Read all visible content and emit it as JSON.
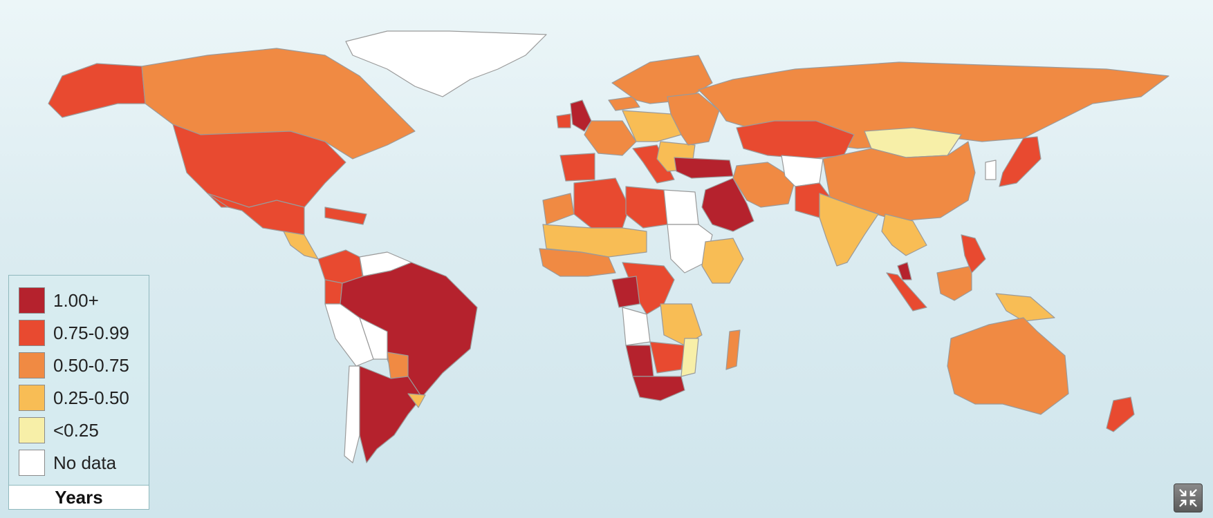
{
  "map": {
    "legend": {
      "title": "Years",
      "items": [
        {
          "label": "1.00+",
          "color": "#b5222d"
        },
        {
          "label": "0.75-0.99",
          "color": "#e84a30"
        },
        {
          "label": "0.50-0.75",
          "color": "#f08a43"
        },
        {
          "label": "0.25-0.50",
          "color": "#f8bd55"
        },
        {
          "label": "<0.25",
          "color": "#f7efa8"
        },
        {
          "label": "No data",
          "color": "#ffffff"
        }
      ]
    },
    "countries": [
      {
        "name": "Alaska",
        "category": "0.75-0.99"
      },
      {
        "name": "Canada",
        "category": "0.50-0.75"
      },
      {
        "name": "Greenland",
        "category": "No data"
      },
      {
        "name": "United States",
        "category": "0.75-0.99"
      },
      {
        "name": "Mexico",
        "category": "0.75-0.99"
      },
      {
        "name": "Central America",
        "category": "0.25-0.50"
      },
      {
        "name": "Caribbean",
        "category": "0.75-0.99"
      },
      {
        "name": "Colombia",
        "category": "0.75-0.99"
      },
      {
        "name": "Venezuela",
        "category": "No data"
      },
      {
        "name": "Ecuador",
        "category": "0.75-0.99"
      },
      {
        "name": "Peru",
        "category": "No data"
      },
      {
        "name": "Brazil",
        "category": "1.00+"
      },
      {
        "name": "Bolivia",
        "category": "No data"
      },
      {
        "name": "Paraguay",
        "category": "0.50-0.75"
      },
      {
        "name": "Chile",
        "category": "No data"
      },
      {
        "name": "Argentina",
        "category": "1.00+"
      },
      {
        "name": "Uruguay",
        "category": "0.25-0.50"
      },
      {
        "name": "Iceland",
        "category": "0.50-0.75"
      },
      {
        "name": "United Kingdom",
        "category": "1.00+"
      },
      {
        "name": "Ireland",
        "category": "0.75-0.99"
      },
      {
        "name": "Scandinavia",
        "category": "0.50-0.75"
      },
      {
        "name": "Iberia",
        "category": "0.75-0.99"
      },
      {
        "name": "Western Europe",
        "category": "0.50-0.75"
      },
      {
        "name": "Central Europe",
        "category": "0.25-0.50"
      },
      {
        "name": "Italy",
        "category": "0.75-0.99"
      },
      {
        "name": "Balkans",
        "category": "0.25-0.50"
      },
      {
        "name": "Eastern Europe",
        "category": "0.50-0.75"
      },
      {
        "name": "Russia",
        "category": "0.50-0.75"
      },
      {
        "name": "Kazakhstan",
        "category": "0.75-0.99"
      },
      {
        "name": "Mongolia",
        "category": "<0.25"
      },
      {
        "name": "China",
        "category": "0.50-0.75"
      },
      {
        "name": "Turkey",
        "category": "1.00+"
      },
      {
        "name": "Saudi Arabia",
        "category": "1.00+"
      },
      {
        "name": "Iran",
        "category": "0.50-0.75"
      },
      {
        "name": "Afghanistan",
        "category": "No data"
      },
      {
        "name": "Pakistan",
        "category": "0.75-0.99"
      },
      {
        "name": "India",
        "category": "0.25-0.50"
      },
      {
        "name": "Southeast Asia",
        "category": "0.25-0.50"
      },
      {
        "name": "Japan",
        "category": "0.75-0.99"
      },
      {
        "name": "Korea",
        "category": "No data"
      },
      {
        "name": "Malaysia",
        "category": "1.00+"
      },
      {
        "name": "Sumatra",
        "category": "0.75-0.99"
      },
      {
        "name": "Borneo",
        "category": "0.50-0.75"
      },
      {
        "name": "Philippines",
        "category": "0.75-0.99"
      },
      {
        "name": "New Guinea",
        "category": "0.25-0.50"
      },
      {
        "name": "Australia",
        "category": "0.50-0.75"
      },
      {
        "name": "New Zealand",
        "category": "0.75-0.99"
      },
      {
        "name": "Morocco",
        "category": "0.50-0.75"
      },
      {
        "name": "Algeria",
        "category": "0.75-0.99"
      },
      {
        "name": "Libya",
        "category": "0.75-0.99"
      },
      {
        "name": "Egypt",
        "category": "No data"
      },
      {
        "name": "Sahel",
        "category": "0.25-0.50"
      },
      {
        "name": "West Africa",
        "category": "0.50-0.75"
      },
      {
        "name": "Sudan",
        "category": "No data"
      },
      {
        "name": "Ethiopia",
        "category": "0.25-0.50"
      },
      {
        "name": "Central Africa",
        "category": "0.75-0.99"
      },
      {
        "name": "Gabon Congo",
        "category": "1.00+"
      },
      {
        "name": "Angola",
        "category": "No data"
      },
      {
        "name": "East Africa",
        "category": "0.25-0.50"
      },
      {
        "name": "Zambia Zimbabwe",
        "category": "0.75-0.99"
      },
      {
        "name": "Mozambique",
        "category": "<0.25"
      },
      {
        "name": "Namibia",
        "category": "1.00+"
      },
      {
        "name": "South Africa",
        "category": "1.00+"
      },
      {
        "name": "Madagascar",
        "category": "0.50-0.75"
      }
    ]
  }
}
